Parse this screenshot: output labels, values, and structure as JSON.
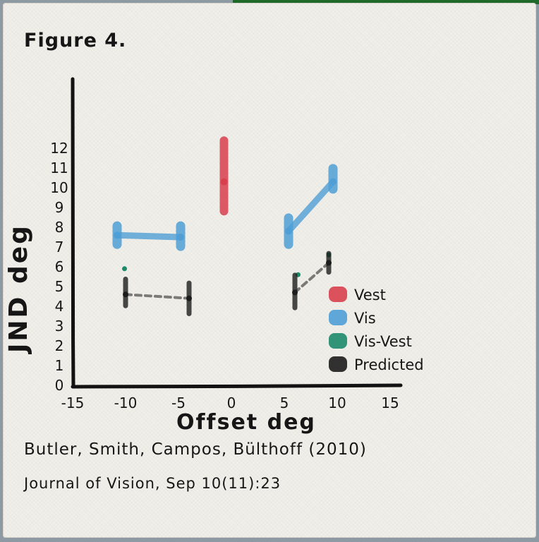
{
  "figure_label": "Figure 4.",
  "citation_line1": "Butler, Smith, Campos, Bülthoff (2010)",
  "citation_line2": "Journal of Vision, Sep 10(11):23",
  "chart_data": {
    "type": "line",
    "xlabel": "Offset deg",
    "ylabel": "JND deg",
    "xlim": [
      -15,
      16
    ],
    "ylim": [
      0,
      13.5
    ],
    "xticks": [
      "-15",
      "-10",
      "-5",
      "0",
      "5",
      "10",
      "15"
    ],
    "yticks": [
      "0",
      "1",
      "2",
      "3",
      "4",
      "5",
      "6",
      "7",
      "8",
      "9",
      "10",
      "11",
      "12"
    ],
    "legend_position": "right",
    "legend": [
      {
        "label": "Vest",
        "color": "#d8404e"
      },
      {
        "label": "Vis",
        "color": "#4f9fd6"
      },
      {
        "label": "Vis-Vest",
        "color": "#1d8a6a"
      },
      {
        "label": "Predicted",
        "color": "#1c1c1c"
      }
    ],
    "series": [
      {
        "name": "Vest",
        "color": "#d8404e",
        "points": [
          {
            "x": -0.7,
            "y": 10.3,
            "y_low": 8.6,
            "y_high": 12.6
          }
        ]
      },
      {
        "name": "Vis",
        "color": "#4f9fd6",
        "points": [
          {
            "x": -10.8,
            "y": 7.6,
            "y_low": 6.9,
            "y_high": 8.3
          },
          {
            "x": -4.8,
            "y": 7.5,
            "y_low": 6.8,
            "y_high": 8.3
          },
          {
            "x": 5.4,
            "y": 7.8,
            "y_low": 6.9,
            "y_high": 8.7
          },
          {
            "x": 9.6,
            "y": 10.3,
            "y_low": 9.7,
            "y_high": 11.2
          }
        ]
      },
      {
        "name": "Vis-Vest",
        "color": "#1d8a6a",
        "points": [
          {
            "x": -10.1,
            "y": 5.9
          },
          {
            "x": 6.3,
            "y": 5.6
          },
          {
            "x": 9.2,
            "y": 6.6
          }
        ]
      },
      {
        "name": "Predicted",
        "color": "#1c1c1c",
        "points": [
          {
            "x": -10.0,
            "y": 4.6,
            "y_low": 3.9,
            "y_high": 5.5
          },
          {
            "x": -4.0,
            "y": 4.4,
            "y_low": 3.5,
            "y_high": 5.3
          },
          {
            "x": 6.0,
            "y": 4.7,
            "y_low": 3.8,
            "y_high": 5.7
          },
          {
            "x": 9.2,
            "y": 6.2,
            "y_low": 5.6,
            "y_high": 6.8
          }
        ]
      }
    ]
  }
}
